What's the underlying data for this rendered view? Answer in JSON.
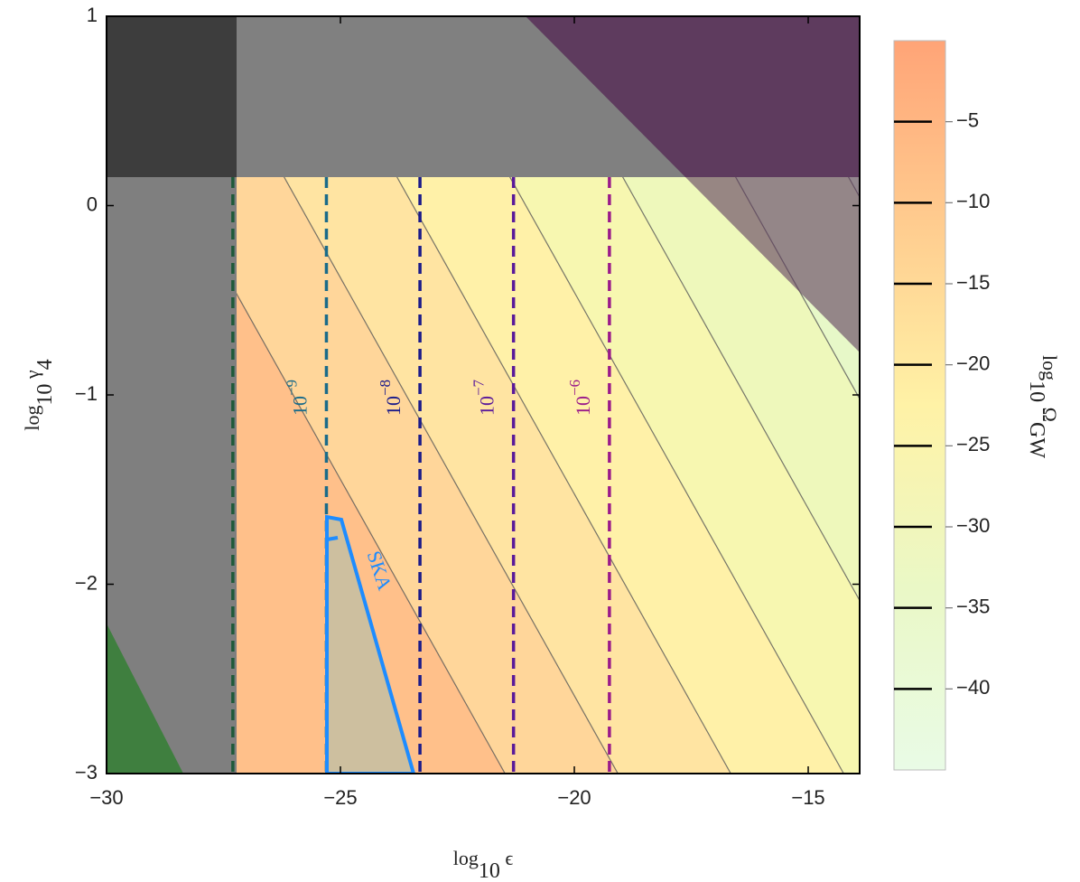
{
  "chart_data": {
    "type": "contour",
    "xlabel": [
      "log",
      "10",
      " ϵ"
    ],
    "ylabel": [
      "log",
      "10",
      " γ",
      "4"
    ],
    "xlim": [
      -30,
      -13.9
    ],
    "ylim": [
      -3,
      1
    ],
    "xticks": [
      {
        "value": -30,
        "label": "−30"
      },
      {
        "value": -25,
        "label": "−25"
      },
      {
        "value": -20,
        "label": "−20"
      },
      {
        "value": -15,
        "label": "−15"
      }
    ],
    "yticks": [
      {
        "value": -3,
        "label": "−3"
      },
      {
        "value": -2,
        "label": "−2"
      },
      {
        "value": -1,
        "label": "−1"
      },
      0,
      1
    ],
    "vlines": [
      {
        "x": -27.3,
        "color": "#1f5a3a"
      },
      {
        "x": -25.3,
        "color": "#1a6b8a",
        "label": [
          "10",
          "−9"
        ]
      },
      {
        "x": -23.3,
        "color": "#1a1a8a",
        "label": [
          "10",
          "−8"
        ]
      },
      {
        "x": -21.3,
        "color": "#5a1a9a",
        "label": [
          "10",
          "−7"
        ]
      },
      {
        "x": -19.25,
        "color": "#9a1a8a",
        "label": [
          "10",
          "−6"
        ]
      }
    ],
    "annotation": "SKA",
    "colorbar": {
      "label": [
        "log",
        "10",
        " Ω",
        "GW"
      ],
      "lim": [
        -45,
        0
      ],
      "colors": [
        "#e9fbe6",
        "#eaf8c6",
        "#fff2a6",
        "#ffcc8f",
        "#ffa477"
      ],
      "ticks": [
        {
          "value": -5,
          "label": "−5"
        },
        {
          "value": -10,
          "label": "−10"
        },
        {
          "value": -15,
          "label": "−15"
        },
        {
          "value": -20,
          "label": "−20"
        },
        {
          "value": -25,
          "label": "−25"
        },
        {
          "value": -30,
          "label": "−30"
        },
        {
          "value": -35,
          "label": "−35"
        },
        {
          "value": -40,
          "label": "−40"
        }
      ]
    }
  }
}
